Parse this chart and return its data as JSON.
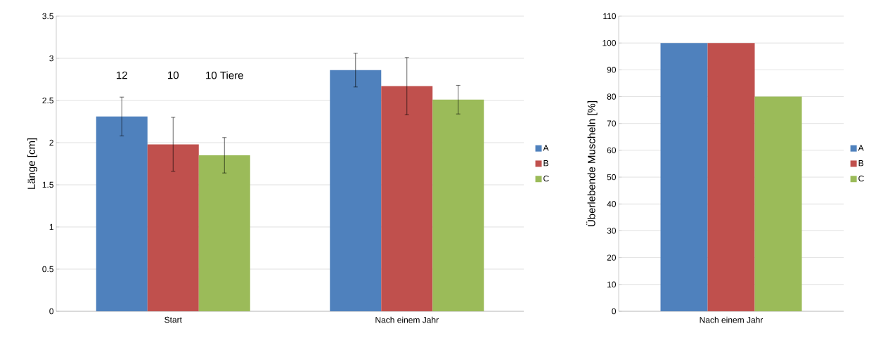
{
  "chart_data": [
    {
      "type": "bar",
      "ylabel": "Länge [cm]",
      "categories": [
        "Start",
        "Nach einem Jahr"
      ],
      "series": [
        {
          "name": "A",
          "color": "#4f81bd",
          "values": [
            2.31,
            2.86
          ],
          "errors": [
            0.23,
            0.2
          ]
        },
        {
          "name": "B",
          "color": "#c0504d",
          "values": [
            1.98,
            2.67
          ],
          "errors": [
            0.32,
            0.34
          ]
        },
        {
          "name": "C",
          "color": "#9bbb59",
          "values": [
            1.85,
            2.51
          ],
          "errors": [
            0.21,
            0.17
          ]
        }
      ],
      "ylim": [
        0,
        3.5
      ],
      "yticks": [
        0,
        0.5,
        1,
        1.5,
        2,
        2.5,
        3,
        3.5
      ],
      "grid": "y",
      "legend": "right",
      "annotations": [
        "12",
        "10",
        "10 Tiere"
      ]
    },
    {
      "type": "bar",
      "ylabel": "Überlebende Muscheln [%]",
      "categories": [
        "Nach einem Jahr"
      ],
      "series": [
        {
          "name": "A",
          "color": "#4f81bd",
          "values": [
            100
          ]
        },
        {
          "name": "B",
          "color": "#c0504d",
          "values": [
            100
          ]
        },
        {
          "name": "C",
          "color": "#9bbb59",
          "values": [
            80
          ]
        }
      ],
      "ylim": [
        0,
        110
      ],
      "yticks": [
        0,
        10,
        20,
        30,
        40,
        50,
        60,
        70,
        80,
        90,
        100,
        110
      ],
      "grid": "y",
      "legend": "right"
    }
  ]
}
